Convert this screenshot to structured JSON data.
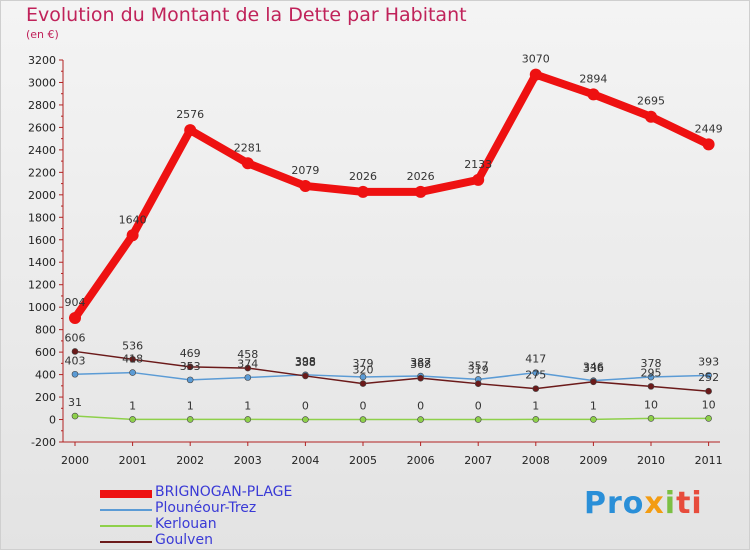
{
  "title": "Evolution du Montant de la Dette par Habitant",
  "subtitle": "(en €)",
  "logo": {
    "part1": "Pro",
    "part2": "x",
    "part3": "i",
    "part4": "ti"
  },
  "chart_data": {
    "type": "line",
    "x": [
      "2000",
      "2001",
      "2002",
      "2003",
      "2004",
      "2005",
      "2006",
      "2007",
      "2008",
      "2009",
      "2010",
      "2011"
    ],
    "ylim": [
      -200,
      3200
    ],
    "yticks": [
      -200,
      0,
      200,
      400,
      600,
      800,
      1000,
      1200,
      1400,
      1600,
      1800,
      2000,
      2200,
      2400,
      2600,
      2800,
      3000,
      3200
    ],
    "grid": false,
    "legend_position": "bottom-left",
    "series": [
      {
        "name": "BRIGNOGAN-PLAGE",
        "color": "#ee1111",
        "values": [
          904,
          1640,
          2576,
          2281,
          2079,
          2026,
          2026,
          2133,
          3070,
          2894,
          2695,
          2449
        ],
        "labels": [
          "904",
          "1640",
          "2576",
          "2281",
          "2079",
          "2026",
          "2026",
          "2133",
          "3070",
          "2894",
          "2695",
          "2449"
        ]
      },
      {
        "name": "Plounéour-Trez",
        "color": "#5b9bd5",
        "values": [
          403,
          418,
          353,
          374,
          398,
          379,
          387,
          357,
          417,
          346,
          378,
          393
        ],
        "labels": [
          "403",
          "418",
          "353",
          "374",
          "398",
          "379",
          "387",
          "357",
          "417",
          "346",
          "378",
          "393"
        ]
      },
      {
        "name": "Kerlouan",
        "color": "#8ed04a",
        "values": [
          31,
          1,
          1,
          1,
          0,
          0,
          0,
          0,
          1,
          1,
          10,
          10
        ],
        "labels": [
          "31",
          "1",
          "1",
          "1",
          "0",
          "0",
          "0",
          "0",
          "1",
          "1",
          "10",
          "10"
        ]
      },
      {
        "name": "Goulven",
        "color": "#6b1a1a",
        "values": [
          606,
          536,
          469,
          458,
          388,
          320,
          368,
          319,
          275,
          336,
          295,
          252
        ],
        "labels": [
          "606",
          "536",
          "469",
          "458",
          "388",
          "320",
          "368",
          "319",
          "275",
          "336",
          "295",
          "252"
        ]
      }
    ]
  }
}
